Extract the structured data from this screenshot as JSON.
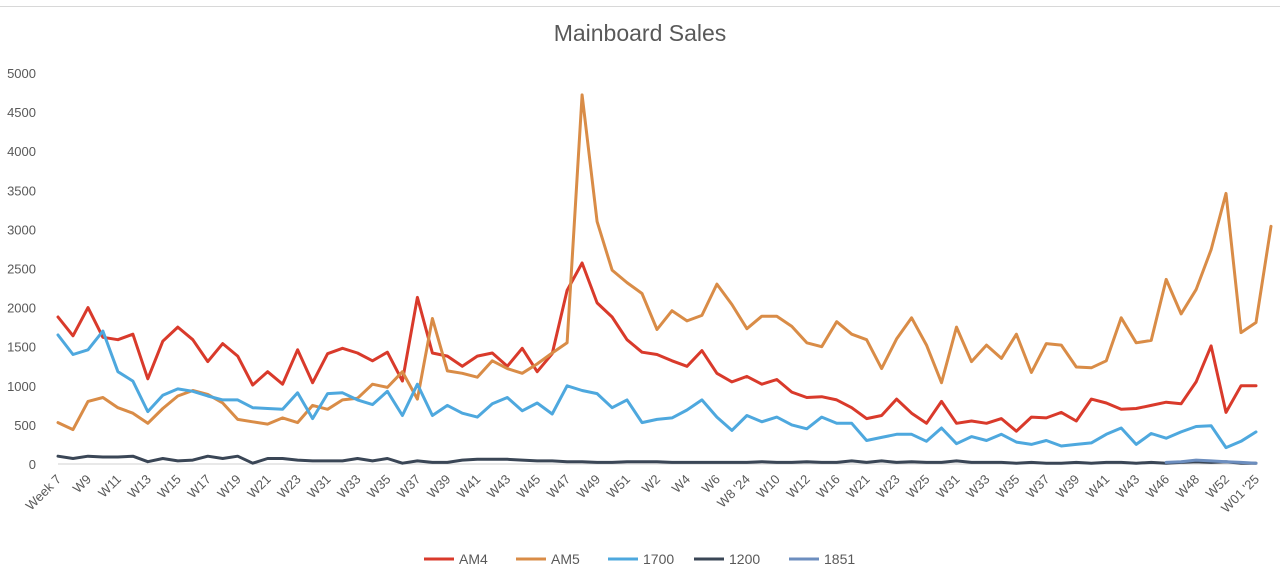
{
  "chart_data": {
    "type": "line",
    "title": "Mainboard Sales",
    "xlabel": "",
    "ylabel": "",
    "ylim": [
      0,
      5000
    ],
    "yticks": [
      0,
      500,
      1000,
      1500,
      2000,
      2500,
      3000,
      3500,
      4000,
      4500,
      5000
    ],
    "grid": false,
    "legend_position": "bottom",
    "x_labels": [
      "Week 7",
      "W9",
      "W11",
      "W13",
      "W15",
      "W17",
      "W19",
      "W21",
      "W23",
      "W31",
      "W33",
      "W35",
      "W37",
      "W39",
      "W41",
      "W43",
      "W45",
      "W47",
      "W49",
      "W51",
      "W2",
      "W4",
      "W6",
      "W8 '24",
      "W10",
      "W12",
      "W16",
      "W21",
      "W23",
      "W25",
      "W31",
      "W33",
      "W35",
      "W37",
      "W39",
      "W41",
      "W43",
      "W46",
      "W48",
      "W52",
      "W01 '25"
    ],
    "series": [
      {
        "name": "AM4",
        "color": "#d93a2b",
        "values": [
          1880,
          1640,
          2000,
          1620,
          1590,
          1660,
          1090,
          1570,
          1750,
          1590,
          1310,
          1540,
          1380,
          1010,
          1180,
          1020,
          1460,
          1040,
          1410,
          1480,
          1420,
          1320,
          1430,
          1060,
          2130,
          1420,
          1380,
          1250,
          1380,
          1420,
          1250,
          1480,
          1180,
          1410,
          2220,
          2570,
          2060,
          1880,
          1590,
          1430,
          1400,
          1320,
          1250,
          1450,
          1160,
          1050,
          1120,
          1020,
          1080,
          920,
          850,
          860,
          820,
          720,
          580,
          620,
          830,
          650,
          520,
          800,
          520,
          550,
          520,
          580,
          420,
          600,
          590,
          660,
          550,
          830,
          780,
          700,
          710,
          750,
          790,
          770,
          1050,
          1510,
          660,
          1000,
          1000
        ]
      },
      {
        "name": "AM5",
        "color": "#d98c47",
        "values": [
          530,
          440,
          800,
          850,
          720,
          650,
          520,
          710,
          870,
          940,
          890,
          780,
          570,
          540,
          510,
          590,
          530,
          750,
          700,
          820,
          840,
          1020,
          980,
          1180,
          830,
          1860,
          1190,
          1160,
          1110,
          1320,
          1220,
          1160,
          1280,
          1420,
          1550,
          4720,
          3100,
          2480,
          2320,
          2180,
          1720,
          1960,
          1830,
          1900,
          2300,
          2040,
          1730,
          1890,
          1890,
          1760,
          1550,
          1500,
          1820,
          1660,
          1590,
          1220,
          1600,
          1870,
          1520,
          1040,
          1750,
          1310,
          1520,
          1350,
          1660,
          1170,
          1540,
          1520,
          1240,
          1230,
          1320,
          1870,
          1550,
          1580,
          2360,
          1920,
          2230,
          2740,
          3460,
          1680,
          1810,
          3040
        ]
      },
      {
        "name": "1700",
        "color": "#4ea8de",
        "values": [
          1650,
          1400,
          1460,
          1700,
          1180,
          1060,
          670,
          880,
          960,
          930,
          870,
          820,
          820,
          720,
          710,
          700,
          910,
          580,
          900,
          910,
          820,
          760,
          930,
          620,
          1020,
          620,
          750,
          650,
          600,
          770,
          850,
          680,
          780,
          640,
          1000,
          940,
          900,
          720,
          820,
          530,
          570,
          590,
          690,
          820,
          600,
          430,
          620,
          540,
          600,
          500,
          450,
          600,
          520,
          520,
          300,
          340,
          380,
          380,
          290,
          460,
          260,
          350,
          300,
          380,
          280,
          250,
          300,
          230,
          250,
          270,
          380,
          460,
          250,
          390,
          330,
          410,
          480,
          490,
          210,
          290,
          410
        ]
      },
      {
        "name": "1200",
        "color": "#3a4656",
        "values": [
          100,
          70,
          100,
          90,
          90,
          100,
          30,
          70,
          40,
          50,
          100,
          70,
          100,
          10,
          70,
          70,
          50,
          40,
          40,
          40,
          70,
          40,
          70,
          10,
          40,
          20,
          20,
          50,
          60,
          60,
          60,
          50,
          40,
          40,
          30,
          30,
          20,
          20,
          30,
          30,
          30,
          20,
          20,
          20,
          20,
          20,
          20,
          30,
          20,
          20,
          30,
          20,
          20,
          40,
          20,
          40,
          20,
          30,
          20,
          20,
          40,
          20,
          20,
          20,
          10,
          20,
          10,
          10,
          20,
          10,
          20,
          20,
          10,
          20,
          10,
          20,
          30,
          20,
          30,
          10,
          10
        ]
      },
      {
        "name": "1851",
        "color": "#6c8ebf",
        "values": [
          null,
          null,
          null,
          null,
          null,
          null,
          null,
          null,
          null,
          null,
          null,
          null,
          null,
          null,
          null,
          null,
          null,
          null,
          null,
          null,
          null,
          null,
          null,
          null,
          null,
          null,
          null,
          null,
          null,
          null,
          null,
          null,
          null,
          null,
          null,
          null,
          null,
          null,
          null,
          null,
          null,
          null,
          null,
          null,
          null,
          null,
          null,
          null,
          null,
          null,
          null,
          null,
          null,
          null,
          null,
          null,
          null,
          null,
          null,
          null,
          null,
          null,
          null,
          null,
          null,
          null,
          null,
          null,
          null,
          null,
          null,
          null,
          null,
          null,
          20,
          30,
          50,
          40,
          30,
          20,
          10
        ]
      }
    ]
  }
}
